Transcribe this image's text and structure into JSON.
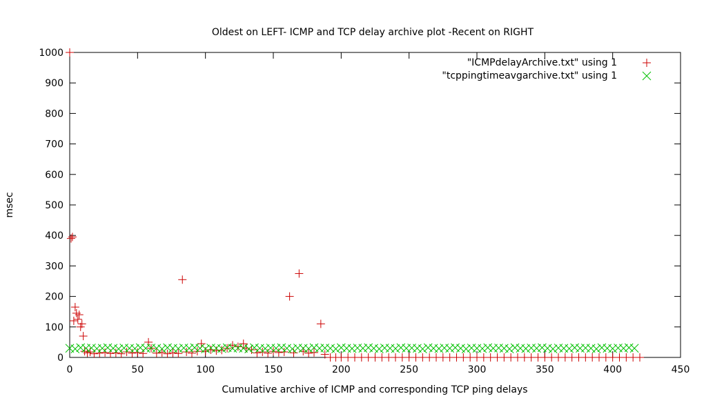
{
  "chart_data": {
    "type": "scatter",
    "title": "Oldest on LEFT- ICMP and TCP delay archive plot -Recent on RIGHT",
    "xlabel": "Cumulative archive of ICMP and corresponding TCP ping delays",
    "ylabel": "msec",
    "xlim": [
      0,
      450
    ],
    "ylim": [
      0,
      1000
    ],
    "x_ticks": [
      "0",
      "50",
      "100",
      "150",
      "200",
      "250",
      "300",
      "350",
      "400",
      "450"
    ],
    "y_ticks": [
      "0",
      "100",
      "200",
      "300",
      "400",
      "500",
      "600",
      "700",
      "800",
      "900",
      "1000"
    ],
    "grid": false,
    "legend_position": "top-right",
    "series": [
      {
        "name": "\"ICMPdelayArchive.txt\" using 1",
        "marker": "plus",
        "color": "#cc0000",
        "points": [
          [
            0,
            1000
          ],
          [
            1,
            390
          ],
          [
            2,
            395
          ],
          [
            3,
            120
          ],
          [
            4,
            165
          ],
          [
            5,
            145
          ],
          [
            6,
            125
          ],
          [
            7,
            140
          ],
          [
            8,
            100
          ],
          [
            9,
            110
          ],
          [
            10,
            70
          ],
          [
            11,
            20
          ],
          [
            13,
            15
          ],
          [
            15,
            18
          ],
          [
            18,
            12
          ],
          [
            22,
            14
          ],
          [
            26,
            16
          ],
          [
            30,
            13
          ],
          [
            34,
            15
          ],
          [
            38,
            12
          ],
          [
            42,
            18
          ],
          [
            46,
            14
          ],
          [
            50,
            16
          ],
          [
            54,
            13
          ],
          [
            58,
            50
          ],
          [
            60,
            30
          ],
          [
            64,
            14
          ],
          [
            68,
            16
          ],
          [
            72,
            12
          ],
          [
            76,
            15
          ],
          [
            80,
            13
          ],
          [
            83,
            255
          ],
          [
            86,
            18
          ],
          [
            90,
            14
          ],
          [
            94,
            20
          ],
          [
            97,
            45
          ],
          [
            100,
            20
          ],
          [
            104,
            25
          ],
          [
            108,
            22
          ],
          [
            112,
            24
          ],
          [
            116,
            30
          ],
          [
            120,
            40
          ],
          [
            124,
            35
          ],
          [
            128,
            45
          ],
          [
            130,
            30
          ],
          [
            134,
            25
          ],
          [
            138,
            15
          ],
          [
            142,
            18
          ],
          [
            146,
            14
          ],
          [
            150,
            20
          ],
          [
            154,
            16
          ],
          [
            158,
            18
          ],
          [
            162,
            200
          ],
          [
            165,
            15
          ],
          [
            169,
            275
          ],
          [
            172,
            20
          ],
          [
            176,
            14
          ],
          [
            180,
            16
          ],
          [
            185,
            110
          ],
          [
            188,
            10
          ],
          [
            192,
            0
          ],
          [
            196,
            0
          ],
          [
            200,
            0
          ],
          [
            205,
            0
          ],
          [
            210,
            0
          ],
          [
            215,
            0
          ],
          [
            220,
            0
          ],
          [
            225,
            0
          ],
          [
            230,
            0
          ],
          [
            235,
            0
          ],
          [
            240,
            0
          ],
          [
            245,
            0
          ],
          [
            250,
            0
          ],
          [
            255,
            0
          ],
          [
            260,
            0
          ],
          [
            265,
            0
          ],
          [
            270,
            0
          ],
          [
            275,
            0
          ],
          [
            280,
            0
          ],
          [
            285,
            0
          ],
          [
            290,
            0
          ],
          [
            295,
            0
          ],
          [
            300,
            0
          ],
          [
            305,
            0
          ],
          [
            310,
            0
          ],
          [
            315,
            0
          ],
          [
            320,
            0
          ],
          [
            325,
            0
          ],
          [
            330,
            0
          ],
          [
            335,
            0
          ],
          [
            340,
            0
          ],
          [
            345,
            0
          ],
          [
            350,
            0
          ],
          [
            355,
            0
          ],
          [
            360,
            0
          ],
          [
            365,
            0
          ],
          [
            370,
            0
          ],
          [
            375,
            0
          ],
          [
            380,
            0
          ],
          [
            385,
            0
          ],
          [
            390,
            0
          ],
          [
            395,
            0
          ],
          [
            400,
            0
          ],
          [
            405,
            0
          ],
          [
            410,
            0
          ],
          [
            415,
            0
          ],
          [
            420,
            0
          ]
        ]
      },
      {
        "name": "\"tcppingtimeavgarchive.txt\" using 1",
        "marker": "cross",
        "color": "#00c000",
        "points": [
          [
            0,
            30
          ],
          [
            4,
            28
          ],
          [
            8,
            32
          ],
          [
            12,
            30
          ],
          [
            16,
            31
          ],
          [
            20,
            29
          ],
          [
            24,
            30
          ],
          [
            28,
            32
          ],
          [
            32,
            30
          ],
          [
            36,
            28
          ],
          [
            40,
            31
          ],
          [
            44,
            30
          ],
          [
            48,
            29
          ],
          [
            52,
            32
          ],
          [
            56,
            30
          ],
          [
            60,
            31
          ],
          [
            64,
            30
          ],
          [
            68,
            28
          ],
          [
            72,
            32
          ],
          [
            76,
            30
          ],
          [
            80,
            29
          ],
          [
            84,
            31
          ],
          [
            88,
            30
          ],
          [
            92,
            32
          ],
          [
            96,
            30
          ],
          [
            100,
            28
          ],
          [
            104,
            31
          ],
          [
            108,
            30
          ],
          [
            112,
            29
          ],
          [
            116,
            32
          ],
          [
            120,
            30
          ],
          [
            124,
            31
          ],
          [
            128,
            30
          ],
          [
            132,
            28
          ],
          [
            136,
            32
          ],
          [
            140,
            30
          ],
          [
            144,
            29
          ],
          [
            148,
            31
          ],
          [
            152,
            30
          ],
          [
            156,
            32
          ],
          [
            160,
            30
          ],
          [
            164,
            28
          ],
          [
            168,
            31
          ],
          [
            172,
            30
          ],
          [
            176,
            29
          ],
          [
            180,
            32
          ],
          [
            184,
            30
          ],
          [
            188,
            31
          ],
          [
            192,
            30
          ],
          [
            196,
            28
          ],
          [
            200,
            32
          ],
          [
            204,
            30
          ],
          [
            208,
            29
          ],
          [
            212,
            31
          ],
          [
            216,
            30
          ],
          [
            220,
            32
          ],
          [
            224,
            30
          ],
          [
            228,
            28
          ],
          [
            232,
            31
          ],
          [
            236,
            30
          ],
          [
            240,
            29
          ],
          [
            244,
            32
          ],
          [
            248,
            30
          ],
          [
            252,
            31
          ],
          [
            256,
            30
          ],
          [
            260,
            28
          ],
          [
            264,
            32
          ],
          [
            268,
            30
          ],
          [
            272,
            29
          ],
          [
            276,
            31
          ],
          [
            280,
            30
          ],
          [
            284,
            32
          ],
          [
            288,
            30
          ],
          [
            292,
            28
          ],
          [
            296,
            31
          ],
          [
            300,
            30
          ],
          [
            304,
            29
          ],
          [
            308,
            32
          ],
          [
            312,
            30
          ],
          [
            316,
            31
          ],
          [
            320,
            30
          ],
          [
            324,
            28
          ],
          [
            328,
            32
          ],
          [
            332,
            30
          ],
          [
            336,
            29
          ],
          [
            340,
            31
          ],
          [
            344,
            30
          ],
          [
            348,
            32
          ],
          [
            352,
            30
          ],
          [
            356,
            28
          ],
          [
            360,
            31
          ],
          [
            364,
            30
          ],
          [
            368,
            29
          ],
          [
            372,
            32
          ],
          [
            376,
            30
          ],
          [
            380,
            31
          ],
          [
            384,
            30
          ],
          [
            388,
            28
          ],
          [
            392,
            32
          ],
          [
            396,
            30
          ],
          [
            400,
            29
          ],
          [
            404,
            31
          ],
          [
            408,
            30
          ],
          [
            412,
            32
          ],
          [
            416,
            30
          ]
        ]
      }
    ]
  }
}
